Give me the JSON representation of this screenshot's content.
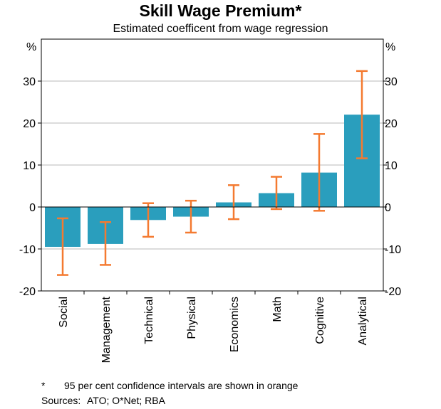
{
  "chart_data": {
    "type": "bar",
    "title": "Skill Wage Premium*",
    "subtitle": "Estimated coefficent from wage regression",
    "ylabel_left": "%",
    "ylabel_right": "%",
    "ylim": [
      -20,
      40
    ],
    "yticks": [
      -20,
      -10,
      0,
      10,
      20,
      30
    ],
    "grid": true,
    "categories": [
      "Social",
      "Management",
      "Technical",
      "Physical",
      "Economics",
      "Math",
      "Cognitive",
      "Analytical"
    ],
    "values": [
      -9.5,
      -8.8,
      -3.1,
      -2.3,
      1.1,
      3.3,
      8.2,
      22.0
    ],
    "ci_low": [
      -16.2,
      -13.8,
      -7.1,
      -6.1,
      -2.9,
      -0.5,
      -0.9,
      11.6
    ],
    "ci_high": [
      -2.7,
      -3.6,
      0.9,
      1.5,
      5.2,
      7.2,
      17.4,
      32.4
    ],
    "bar_color": "#2a9ebd",
    "ci_color": "#f47a30",
    "footnote_marker": "*",
    "footnote": "95 per cent confidence intervals are shown in orange",
    "sources_label": "Sources:",
    "sources": "ATO; O*Net; RBA"
  }
}
